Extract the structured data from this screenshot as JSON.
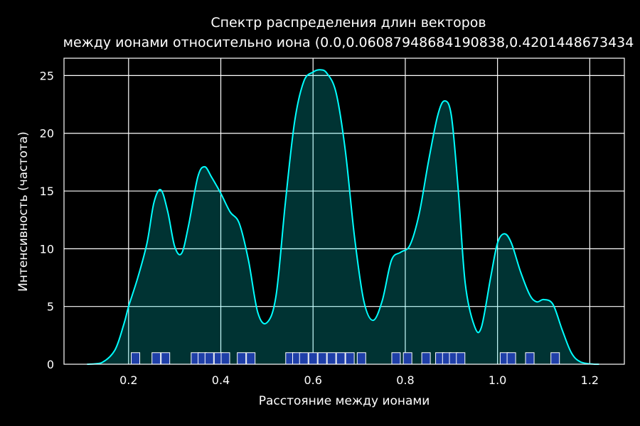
{
  "chart_data": {
    "type": "area",
    "title_line1": "Спектр распределения длин векторов",
    "title_line2": "между ионами относительно иона (0.0,0.06087948684190838,0.4201448673434",
    "xlabel": "Расстояние между ионами",
    "ylabel": "Интенсивность (частота)",
    "xlim": [
      0.06,
      1.275
    ],
    "ylim": [
      0,
      26.5
    ],
    "xticks": [
      "0.2",
      "0.4",
      "0.6",
      "0.8",
      "1.0",
      "1.2"
    ],
    "yticks": [
      "0",
      "5",
      "10",
      "15",
      "20",
      "25"
    ],
    "grid": true,
    "colors": {
      "background": "#000000",
      "curve": "#00ffff",
      "rug_fill": "#1f3fa8",
      "rug_edge": "#ffffff",
      "grid": "#ffffff"
    },
    "curve": {
      "x": [
        0.11,
        0.14,
        0.17,
        0.19,
        0.2,
        0.22,
        0.24,
        0.255,
        0.27,
        0.285,
        0.3,
        0.315,
        0.33,
        0.35,
        0.365,
        0.38,
        0.4,
        0.42,
        0.44,
        0.46,
        0.48,
        0.5,
        0.52,
        0.54,
        0.56,
        0.58,
        0.6,
        0.615,
        0.63,
        0.65,
        0.67,
        0.69,
        0.71,
        0.73,
        0.75,
        0.77,
        0.79,
        0.81,
        0.83,
        0.85,
        0.87,
        0.885,
        0.9,
        0.915,
        0.93,
        0.95,
        0.965,
        0.985,
        1.0,
        1.015,
        1.03,
        1.05,
        1.07,
        1.085,
        1.1,
        1.12,
        1.14,
        1.16,
        1.18,
        1.21,
        1.22
      ],
      "y": [
        0.0,
        0.1,
        1.2,
        3.5,
        5.0,
        7.5,
        10.5,
        14.0,
        15.1,
        13.2,
        10.2,
        9.6,
        12.0,
        16.2,
        17.1,
        16.2,
        14.8,
        13.2,
        12.2,
        9.0,
        4.5,
        3.6,
        6.0,
        14.0,
        21.0,
        24.5,
        25.3,
        25.5,
        25.2,
        23.5,
        18.5,
        11.0,
        5.5,
        3.8,
        5.5,
        9.0,
        9.7,
        10.3,
        13.0,
        17.5,
        21.5,
        22.8,
        21.5,
        15.0,
        7.0,
        3.3,
        3.2,
        7.5,
        10.5,
        11.3,
        10.5,
        8.0,
        6.0,
        5.4,
        5.6,
        5.2,
        3.0,
        1.0,
        0.2,
        0.0,
        0.0
      ]
    },
    "rug_x": [
      0.215,
      0.26,
      0.28,
      0.345,
      0.36,
      0.375,
      0.395,
      0.41,
      0.445,
      0.465,
      0.55,
      0.565,
      0.58,
      0.6,
      0.62,
      0.64,
      0.66,
      0.68,
      0.705,
      0.78,
      0.805,
      0.845,
      0.875,
      0.89,
      0.905,
      0.92,
      1.015,
      1.03,
      1.07,
      1.125
    ],
    "rug_height": 1.0
  }
}
